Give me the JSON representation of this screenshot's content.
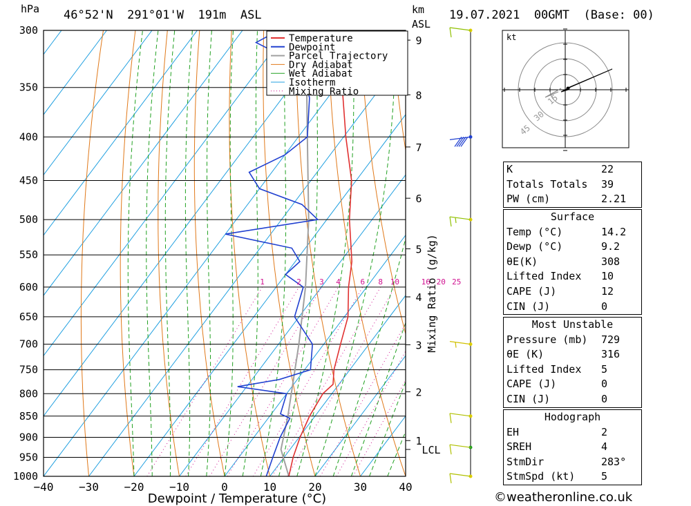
{
  "header": {
    "pressure_unit": "hPa",
    "location": "46°52'N  291°01'W  191m  ASL",
    "km_label": "km",
    "asl_label": "ASL",
    "datetime": "19.07.2021  00GMT  (Base: 00)"
  },
  "hodograph": {
    "unit": "kt",
    "ring_labels": [
      "15",
      "30",
      "45"
    ]
  },
  "indices": {
    "general": [
      {
        "label": "K",
        "value": "22"
      },
      {
        "label": "Totals Totals",
        "value": "39"
      },
      {
        "label": "PW (cm)",
        "value": "2.21"
      }
    ],
    "surface": {
      "title": "Surface",
      "rows": [
        {
          "label": "Temp (°C)",
          "value": "14.2"
        },
        {
          "label": "Dewp (°C)",
          "value": "9.2"
        },
        {
          "label": "θE(K)",
          "value": "308"
        },
        {
          "label": "Lifted Index",
          "value": "10"
        },
        {
          "label": "CAPE (J)",
          "value": "12"
        },
        {
          "label": "CIN (J)",
          "value": "0"
        }
      ]
    },
    "most_unstable": {
      "title": "Most Unstable",
      "rows": [
        {
          "label": "Pressure (mb)",
          "value": "729"
        },
        {
          "label": "θE (K)",
          "value": "316"
        },
        {
          "label": "Lifted Index",
          "value": "5"
        },
        {
          "label": "CAPE (J)",
          "value": "0"
        },
        {
          "label": "CIN (J)",
          "value": "0"
        }
      ]
    },
    "hodo": {
      "title": "Hodograph",
      "rows": [
        {
          "label": "EH",
          "value": "2"
        },
        {
          "label": "SREH",
          "value": "4"
        },
        {
          "label": "StmDir",
          "value": "283°"
        },
        {
          "label": "StmSpd (kt)",
          "value": "5"
        }
      ]
    }
  },
  "footer": "©weatheronline.co.uk",
  "colors": {
    "temperature": "#e03030",
    "dewpoint": "#2040d0",
    "parcel": "#a0a0a0",
    "dry_adiabat": "#e07818",
    "wet_adiabat": "#20a020",
    "isotherm": "#20a0e0",
    "mixing_ratio": "#d01090"
  },
  "chart_data": {
    "type": "skew-t",
    "xlabel": "Dewpoint / Temperature (°C)",
    "ylabel": "hPa",
    "right_axis_label": "Mixing Ratio (g/kg)",
    "xlim": [
      -40,
      40
    ],
    "ylim": [
      1000,
      300
    ],
    "x_ticks": [
      -40,
      -30,
      -20,
      -10,
      0,
      10,
      20,
      30,
      40
    ],
    "pressure_levels": [
      300,
      350,
      400,
      450,
      500,
      550,
      600,
      650,
      700,
      750,
      800,
      850,
      900,
      950,
      1000
    ],
    "km_ticks": [
      {
        "km": "1",
        "p": 908
      },
      {
        "km": "2",
        "p": 796
      },
      {
        "km": "3",
        "p": 701
      },
      {
        "km": "4",
        "p": 616
      },
      {
        "km": "5",
        "p": 541
      },
      {
        "km": "6",
        "p": 472
      },
      {
        "km": "7",
        "p": 411
      },
      {
        "km": "8",
        "p": 357
      },
      {
        "km": "9",
        "p": 308
      }
    ],
    "lcl": {
      "label": "LCL",
      "p": 930
    },
    "mixing_ratio_labels": [
      "1",
      "2",
      "3",
      "4",
      "6",
      "8",
      "10",
      "16",
      "20",
      "25"
    ],
    "legend": [
      "Temperature",
      "Dewpoint",
      "Parcel Trajectory",
      "Dry Adiabat",
      "Wet Adiabat",
      "Isotherm",
      "Mixing Ratio"
    ],
    "temperature": [
      {
        "p": 1000,
        "t": 14.2
      },
      {
        "p": 950,
        "t": 12.0
      },
      {
        "p": 900,
        "t": 10.2
      },
      {
        "p": 850,
        "t": 8.8
      },
      {
        "p": 800,
        "t": 8.0
      },
      {
        "p": 780,
        "t": 8.7
      },
      {
        "p": 750,
        "t": 6.5
      },
      {
        "p": 700,
        "t": 3.7
      },
      {
        "p": 650,
        "t": 0.8
      },
      {
        "p": 600,
        "t": -4.0
      },
      {
        "p": 560,
        "t": -7.5
      },
      {
        "p": 500,
        "t": -15.0
      },
      {
        "p": 450,
        "t": -21.0
      },
      {
        "p": 400,
        "t": -29.5
      },
      {
        "p": 350,
        "t": -38.5
      },
      {
        "p": 320,
        "t": -44.0
      },
      {
        "p": 300,
        "t": -47.0
      }
    ],
    "dewpoint": [
      {
        "p": 1000,
        "t": 9.2
      },
      {
        "p": 950,
        "t": 7.5
      },
      {
        "p": 900,
        "t": 5.8
      },
      {
        "p": 855,
        "t": 4.8
      },
      {
        "p": 845,
        "t": 2.0
      },
      {
        "p": 800,
        "t": 0.0
      },
      {
        "p": 785,
        "t": -12.0
      },
      {
        "p": 770,
        "t": -4.0
      },
      {
        "p": 750,
        "t": 1.3
      },
      {
        "p": 700,
        "t": -2.5
      },
      {
        "p": 650,
        "t": -11.0
      },
      {
        "p": 600,
        "t": -14.0
      },
      {
        "p": 580,
        "t": -20.0
      },
      {
        "p": 560,
        "t": -19.0
      },
      {
        "p": 540,
        "t": -23.0
      },
      {
        "p": 520,
        "t": -40.0
      },
      {
        "p": 500,
        "t": -22.0
      },
      {
        "p": 480,
        "t": -28.0
      },
      {
        "p": 460,
        "t": -40.0
      },
      {
        "p": 440,
        "t": -45.0
      },
      {
        "p": 420,
        "t": -40.0
      },
      {
        "p": 400,
        "t": -38.0
      },
      {
        "p": 360,
        "t": -44.0
      },
      {
        "p": 330,
        "t": -51.0
      },
      {
        "p": 310,
        "t": -65.0
      },
      {
        "p": 300,
        "t": -62.0
      }
    ],
    "parcel": [
      {
        "p": 1000,
        "t": 14.2
      },
      {
        "p": 930,
        "t": 8.0
      },
      {
        "p": 850,
        "t": 4.0
      },
      {
        "p": 700,
        "t": -5.5
      },
      {
        "p": 600,
        "t": -13.5
      },
      {
        "p": 500,
        "t": -24.0
      },
      {
        "p": 400,
        "t": -38.0
      },
      {
        "p": 300,
        "t": -56.0
      }
    ],
    "wind_barbs_kt": [
      {
        "p": 1000,
        "speed": 10
      },
      {
        "p": 925,
        "speed": 10
      },
      {
        "p": 850,
        "speed": 10
      },
      {
        "p": 700,
        "speed": 5
      },
      {
        "p": 500,
        "speed": 15
      },
      {
        "p": 400,
        "speed": 40
      },
      {
        "p": 300,
        "speed": 10
      }
    ]
  }
}
